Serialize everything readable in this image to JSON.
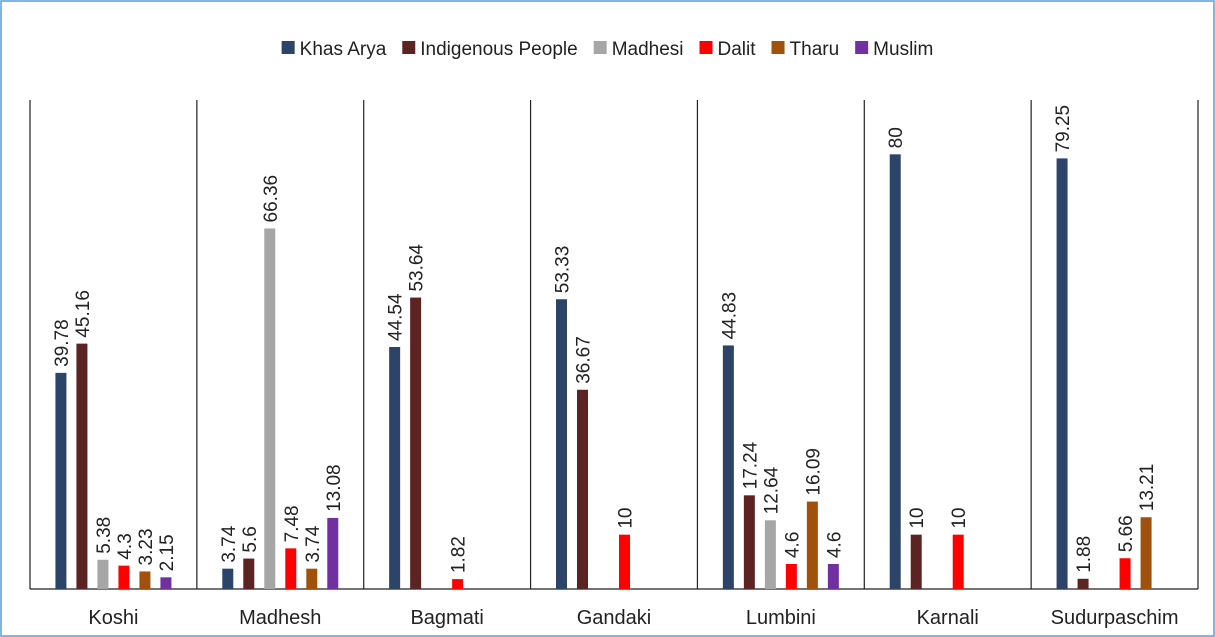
{
  "chart_data": {
    "type": "bar",
    "categories": [
      "Koshi",
      "Madhesh",
      "Bagmati",
      "Gandaki",
      "Lumbini",
      "Karnali",
      "Sudurpaschim"
    ],
    "series": [
      {
        "name": "Khas Arya",
        "color": "#2b4468",
        "values": [
          39.78,
          3.74,
          44.54,
          53.33,
          44.83,
          80,
          79.25
        ]
      },
      {
        "name": "Indigenous People",
        "color": "#5c2323",
        "values": [
          45.16,
          5.6,
          53.64,
          36.67,
          17.24,
          10,
          1.88
        ]
      },
      {
        "name": "Madhesi",
        "color": "#a6a6a6",
        "values": [
          5.38,
          66.36,
          null,
          null,
          12.64,
          null,
          null
        ]
      },
      {
        "name": "Dalit",
        "color": "#ff0000",
        "values": [
          4.3,
          7.48,
          1.82,
          10,
          4.6,
          10,
          5.66
        ]
      },
      {
        "name": "Tharu",
        "color": "#a0520c",
        "values": [
          3.23,
          3.74,
          null,
          null,
          16.09,
          null,
          13.21
        ]
      },
      {
        "name": "Muslim",
        "color": "#7030a0",
        "values": [
          2.15,
          13.08,
          null,
          null,
          4.6,
          null,
          null
        ]
      }
    ],
    "ylim": [
      0,
      90
    ],
    "legend": "top"
  }
}
